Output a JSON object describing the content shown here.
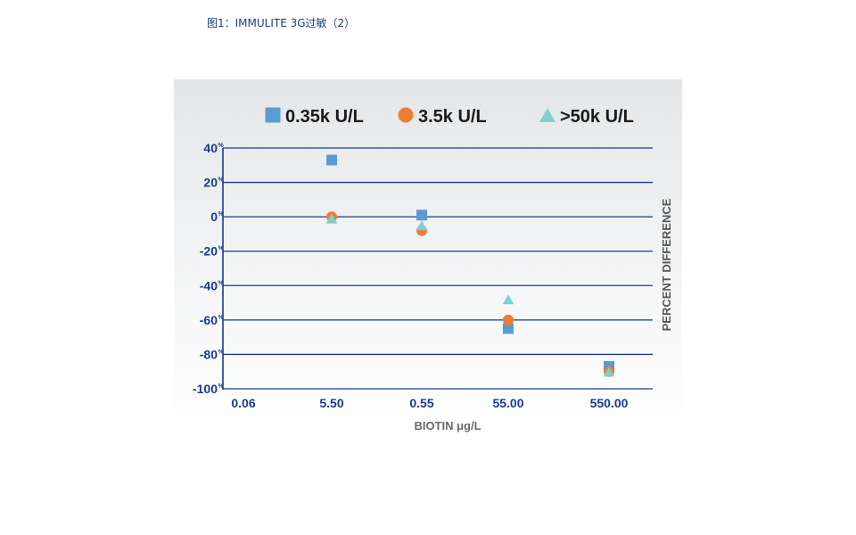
{
  "caption": "图1：IMMULITE 3G过敏（2）",
  "chart_data": {
    "type": "scatter",
    "title": "",
    "xlabel": "BIOTIN μg/L",
    "ylabel": "PERCENT DIFFERENCE",
    "ylim": [
      -100,
      40
    ],
    "y_ticks": [
      {
        "value": 40,
        "label": "40",
        "suffix": "%"
      },
      {
        "value": 20,
        "label": "20",
        "suffix": "%"
      },
      {
        "value": 0,
        "label": "0",
        "suffix": "%"
      },
      {
        "value": -20,
        "label": "-20",
        "suffix": "%"
      },
      {
        "value": -40,
        "label": "-40",
        "suffix": "%"
      },
      {
        "value": -60,
        "label": "-60",
        "suffix": "%"
      },
      {
        "value": -80,
        "label": "-80",
        "suffix": "%"
      },
      {
        "value": -100,
        "label": "-100",
        "suffix": "%"
      }
    ],
    "categories": [
      "0.06",
      "5.50",
      "0.55",
      "55.00",
      "550.00"
    ],
    "grid": true,
    "legend_position": "top",
    "series": [
      {
        "name": "0.35k U/L",
        "marker": "square",
        "color": "#5b9bd5",
        "values": [
          null,
          33,
          1,
          -65,
          -87
        ]
      },
      {
        "name": "3.5k U/L",
        "marker": "circle",
        "color": "#ed7d31",
        "values": [
          null,
          0,
          -8,
          -60,
          -90
        ]
      },
      {
        "name": ">50k U/L",
        "marker": "triangle",
        "color": "#7fcfcf",
        "values": [
          null,
          -1,
          -5,
          -48,
          -90
        ]
      }
    ],
    "colors": {
      "axis": "#1a3a8c",
      "grid": "#1a3a8c",
      "tick_text": "#1a3a8c",
      "xlabel_text": "#6a6a6a",
      "ylabel_text": "#555555",
      "legend_text": "#1a1a1a",
      "background_top": "#e4e6e8",
      "background_bottom": "#ffffff"
    }
  }
}
